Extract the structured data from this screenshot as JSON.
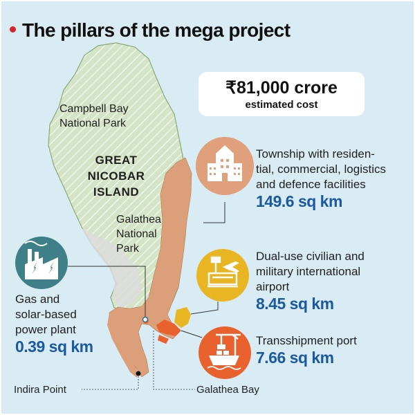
{
  "title": "The pillars of the mega project",
  "cost": {
    "value": "₹81,000 crore",
    "label": "estimated cost"
  },
  "map_labels": {
    "park_north": [
      "Campbell Bay",
      "National Park"
    ],
    "island": [
      "GREAT",
      "NICOBAR",
      "ISLAND"
    ],
    "park_south": [
      "Galathea",
      "National",
      "Park"
    ],
    "indira_point": "Indira Point",
    "galathea_bay": "Galathea Bay"
  },
  "components": {
    "township": {
      "lines": [
        "Township with residen-",
        "tial, commercial, logistics",
        "and defence facilities"
      ],
      "area": "149.6 sq km",
      "icon": "buildings-icon"
    },
    "airport": {
      "lines": [
        "Dual-use civilian and",
        "military international",
        "airport"
      ],
      "area": "8.45 sq km",
      "icon": "airport-icon"
    },
    "port": {
      "lines": [
        "Transshipment port"
      ],
      "area": "7.66 sq km",
      "icon": "port-crane-icon"
    },
    "power": {
      "lines": [
        "Gas and",
        "solar-based",
        "power plant"
      ],
      "area": "0.39 sq km",
      "icon": "power-plant-icon"
    }
  },
  "colors": {
    "sea": "#d9ebf3",
    "island": "#d4e4c6",
    "project_area": "#dba07a",
    "township_icon": "#dfa07b",
    "airport_icon": "#e9b623",
    "port_icon": "#e9622d",
    "power_icon": "#3f7f87",
    "title_dot": "#d7242b",
    "area_text": "#1b5aa0"
  }
}
